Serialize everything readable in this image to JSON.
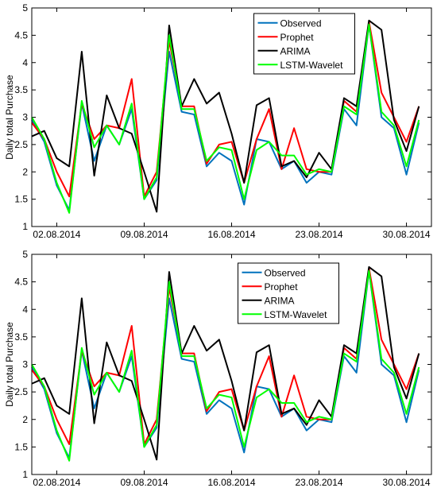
{
  "chart_data": [
    {
      "type": "line",
      "ylabel": "Daily total Purchase",
      "x": [
        "2014-07-31",
        "2014-08-01",
        "2014-08-02",
        "2014-08-03",
        "2014-08-04",
        "2014-08-05",
        "2014-08-06",
        "2014-08-07",
        "2014-08-08",
        "2014-08-09",
        "2014-08-10",
        "2014-08-11",
        "2014-08-12",
        "2014-08-13",
        "2014-08-14",
        "2014-08-15",
        "2014-08-16",
        "2014-08-17",
        "2014-08-18",
        "2014-08-19",
        "2014-08-20",
        "2014-08-21",
        "2014-08-22",
        "2014-08-23",
        "2014-08-24",
        "2014-08-25",
        "2014-08-26",
        "2014-08-27",
        "2014-08-28",
        "2014-08-29",
        "2014-08-30",
        "2014-08-31"
      ],
      "xlim": [
        "2014-07-31",
        "2014-09-01"
      ],
      "xticks": [
        {
          "value": "2014-08-02",
          "label": "02.08.2014"
        },
        {
          "value": "2014-08-09",
          "label": "09.08.2014"
        },
        {
          "value": "2014-08-16",
          "label": "16.08.2014"
        },
        {
          "value": "2014-08-23",
          "label": "23.08.2014"
        },
        {
          "value": "2014-08-30",
          "label": "30.08.2014"
        }
      ],
      "ylim": [
        1,
        5
      ],
      "yticks": [
        1,
        1.5,
        2,
        2.5,
        3,
        3.5,
        4,
        4.5,
        5
      ],
      "legend": "upper center",
      "series": [
        {
          "name": "Observed",
          "color": "#0072bd",
          "values": [
            2.95,
            2.55,
            1.75,
            1.3,
            3.25,
            2.2,
            2.85,
            2.5,
            3.15,
            1.5,
            1.85,
            4.2,
            3.1,
            3.05,
            2.1,
            2.35,
            2.2,
            1.4,
            2.6,
            2.55,
            2.05,
            2.2,
            1.8,
            2.0,
            1.95,
            3.15,
            2.85,
            4.7,
            3.0,
            2.8,
            1.95,
            2.9
          ]
        },
        {
          "name": "Prophet",
          "color": "#ff0000",
          "values": [
            2.9,
            2.6,
            2.0,
            1.55,
            3.25,
            2.6,
            2.85,
            2.8,
            3.7,
            1.55,
            2.0,
            4.4,
            3.2,
            3.2,
            2.15,
            2.5,
            2.55,
            1.8,
            2.6,
            3.15,
            2.05,
            2.8,
            2.05,
            2.0,
            2.0,
            3.3,
            3.1,
            4.75,
            3.45,
            3.0,
            2.55,
            3.2
          ]
        },
        {
          "name": "ARIMA",
          "color": "#000000",
          "values": [
            2.65,
            2.75,
            2.25,
            2.1,
            4.2,
            1.93,
            3.4,
            2.8,
            2.7,
            2.0,
            1.27,
            4.68,
            3.2,
            3.7,
            3.25,
            3.45,
            2.7,
            1.8,
            3.22,
            3.35,
            2.1,
            2.2,
            1.9,
            2.35,
            2.05,
            3.35,
            3.2,
            4.77,
            4.6,
            2.95,
            2.38,
            3.2
          ]
        },
        {
          "name": "LSTM-Wavelet",
          "color": "#00ff00",
          "values": [
            3.0,
            2.6,
            1.8,
            1.25,
            3.3,
            2.45,
            2.85,
            2.5,
            3.25,
            1.5,
            1.9,
            4.5,
            3.15,
            3.15,
            2.2,
            2.45,
            2.4,
            1.5,
            2.4,
            2.55,
            2.3,
            2.3,
            1.95,
            2.05,
            2.0,
            3.2,
            3.05,
            4.7,
            3.1,
            2.85,
            2.1,
            2.95
          ]
        }
      ]
    },
    {
      "type": "line",
      "ylabel": "Daily total Purchase",
      "x": [
        "2014-07-31",
        "2014-08-01",
        "2014-08-02",
        "2014-08-03",
        "2014-08-04",
        "2014-08-05",
        "2014-08-06",
        "2014-08-07",
        "2014-08-08",
        "2014-08-09",
        "2014-08-10",
        "2014-08-11",
        "2014-08-12",
        "2014-08-13",
        "2014-08-14",
        "2014-08-15",
        "2014-08-16",
        "2014-08-17",
        "2014-08-18",
        "2014-08-19",
        "2014-08-20",
        "2014-08-21",
        "2014-08-22",
        "2014-08-23",
        "2014-08-24",
        "2014-08-25",
        "2014-08-26",
        "2014-08-27",
        "2014-08-28",
        "2014-08-29",
        "2014-08-30",
        "2014-08-31"
      ],
      "xlim": [
        "2014-07-31",
        "2014-09-01"
      ],
      "xticks": [
        {
          "value": "2014-08-02",
          "label": "02.08.2014"
        },
        {
          "value": "2014-08-09",
          "label": "09.08.2014"
        },
        {
          "value": "2014-08-16",
          "label": "16.08.2014"
        },
        {
          "value": "2014-08-23",
          "label": "23.08.2014"
        },
        {
          "value": "2014-08-30",
          "label": "30.08.2014"
        }
      ],
      "ylim": [
        1,
        5
      ],
      "yticks": [
        1,
        1.5,
        2,
        2.5,
        3,
        3.5,
        4,
        4.5,
        5
      ],
      "legend": "upper center",
      "series": [
        {
          "name": "Observed",
          "color": "#0072bd",
          "values": [
            2.95,
            2.55,
            1.75,
            1.3,
            3.25,
            2.2,
            2.85,
            2.5,
            3.15,
            1.5,
            1.85,
            4.2,
            3.1,
            3.05,
            2.1,
            2.35,
            2.2,
            1.4,
            2.6,
            2.55,
            2.05,
            2.2,
            1.8,
            2.0,
            1.95,
            3.15,
            2.85,
            4.7,
            3.0,
            2.8,
            1.95,
            2.9
          ]
        },
        {
          "name": "Prophet",
          "color": "#ff0000",
          "values": [
            2.9,
            2.6,
            2.0,
            1.55,
            3.25,
            2.6,
            2.85,
            2.8,
            3.7,
            1.55,
            2.0,
            4.4,
            3.2,
            3.2,
            2.15,
            2.5,
            2.55,
            1.8,
            2.6,
            3.15,
            2.05,
            2.8,
            2.05,
            2.0,
            2.0,
            3.3,
            3.1,
            4.75,
            3.45,
            3.0,
            2.55,
            3.2
          ]
        },
        {
          "name": "ARIMA",
          "color": "#000000",
          "values": [
            2.65,
            2.75,
            2.25,
            2.1,
            4.2,
            1.93,
            3.4,
            2.8,
            2.7,
            2.0,
            1.27,
            4.68,
            3.2,
            3.7,
            3.25,
            3.45,
            2.7,
            1.8,
            3.22,
            3.35,
            2.1,
            2.2,
            1.9,
            2.35,
            2.05,
            3.35,
            3.2,
            4.77,
            4.6,
            2.95,
            2.38,
            3.2
          ]
        },
        {
          "name": "LSTM-Wavelet",
          "color": "#00ff00",
          "values": [
            3.0,
            2.6,
            1.8,
            1.25,
            3.3,
            2.45,
            2.85,
            2.5,
            3.25,
            1.5,
            1.9,
            4.5,
            3.15,
            3.15,
            2.2,
            2.45,
            2.4,
            1.5,
            2.4,
            2.55,
            2.3,
            2.3,
            1.95,
            2.05,
            2.0,
            3.2,
            3.05,
            4.7,
            3.1,
            2.85,
            2.1,
            2.95
          ]
        }
      ]
    }
  ]
}
